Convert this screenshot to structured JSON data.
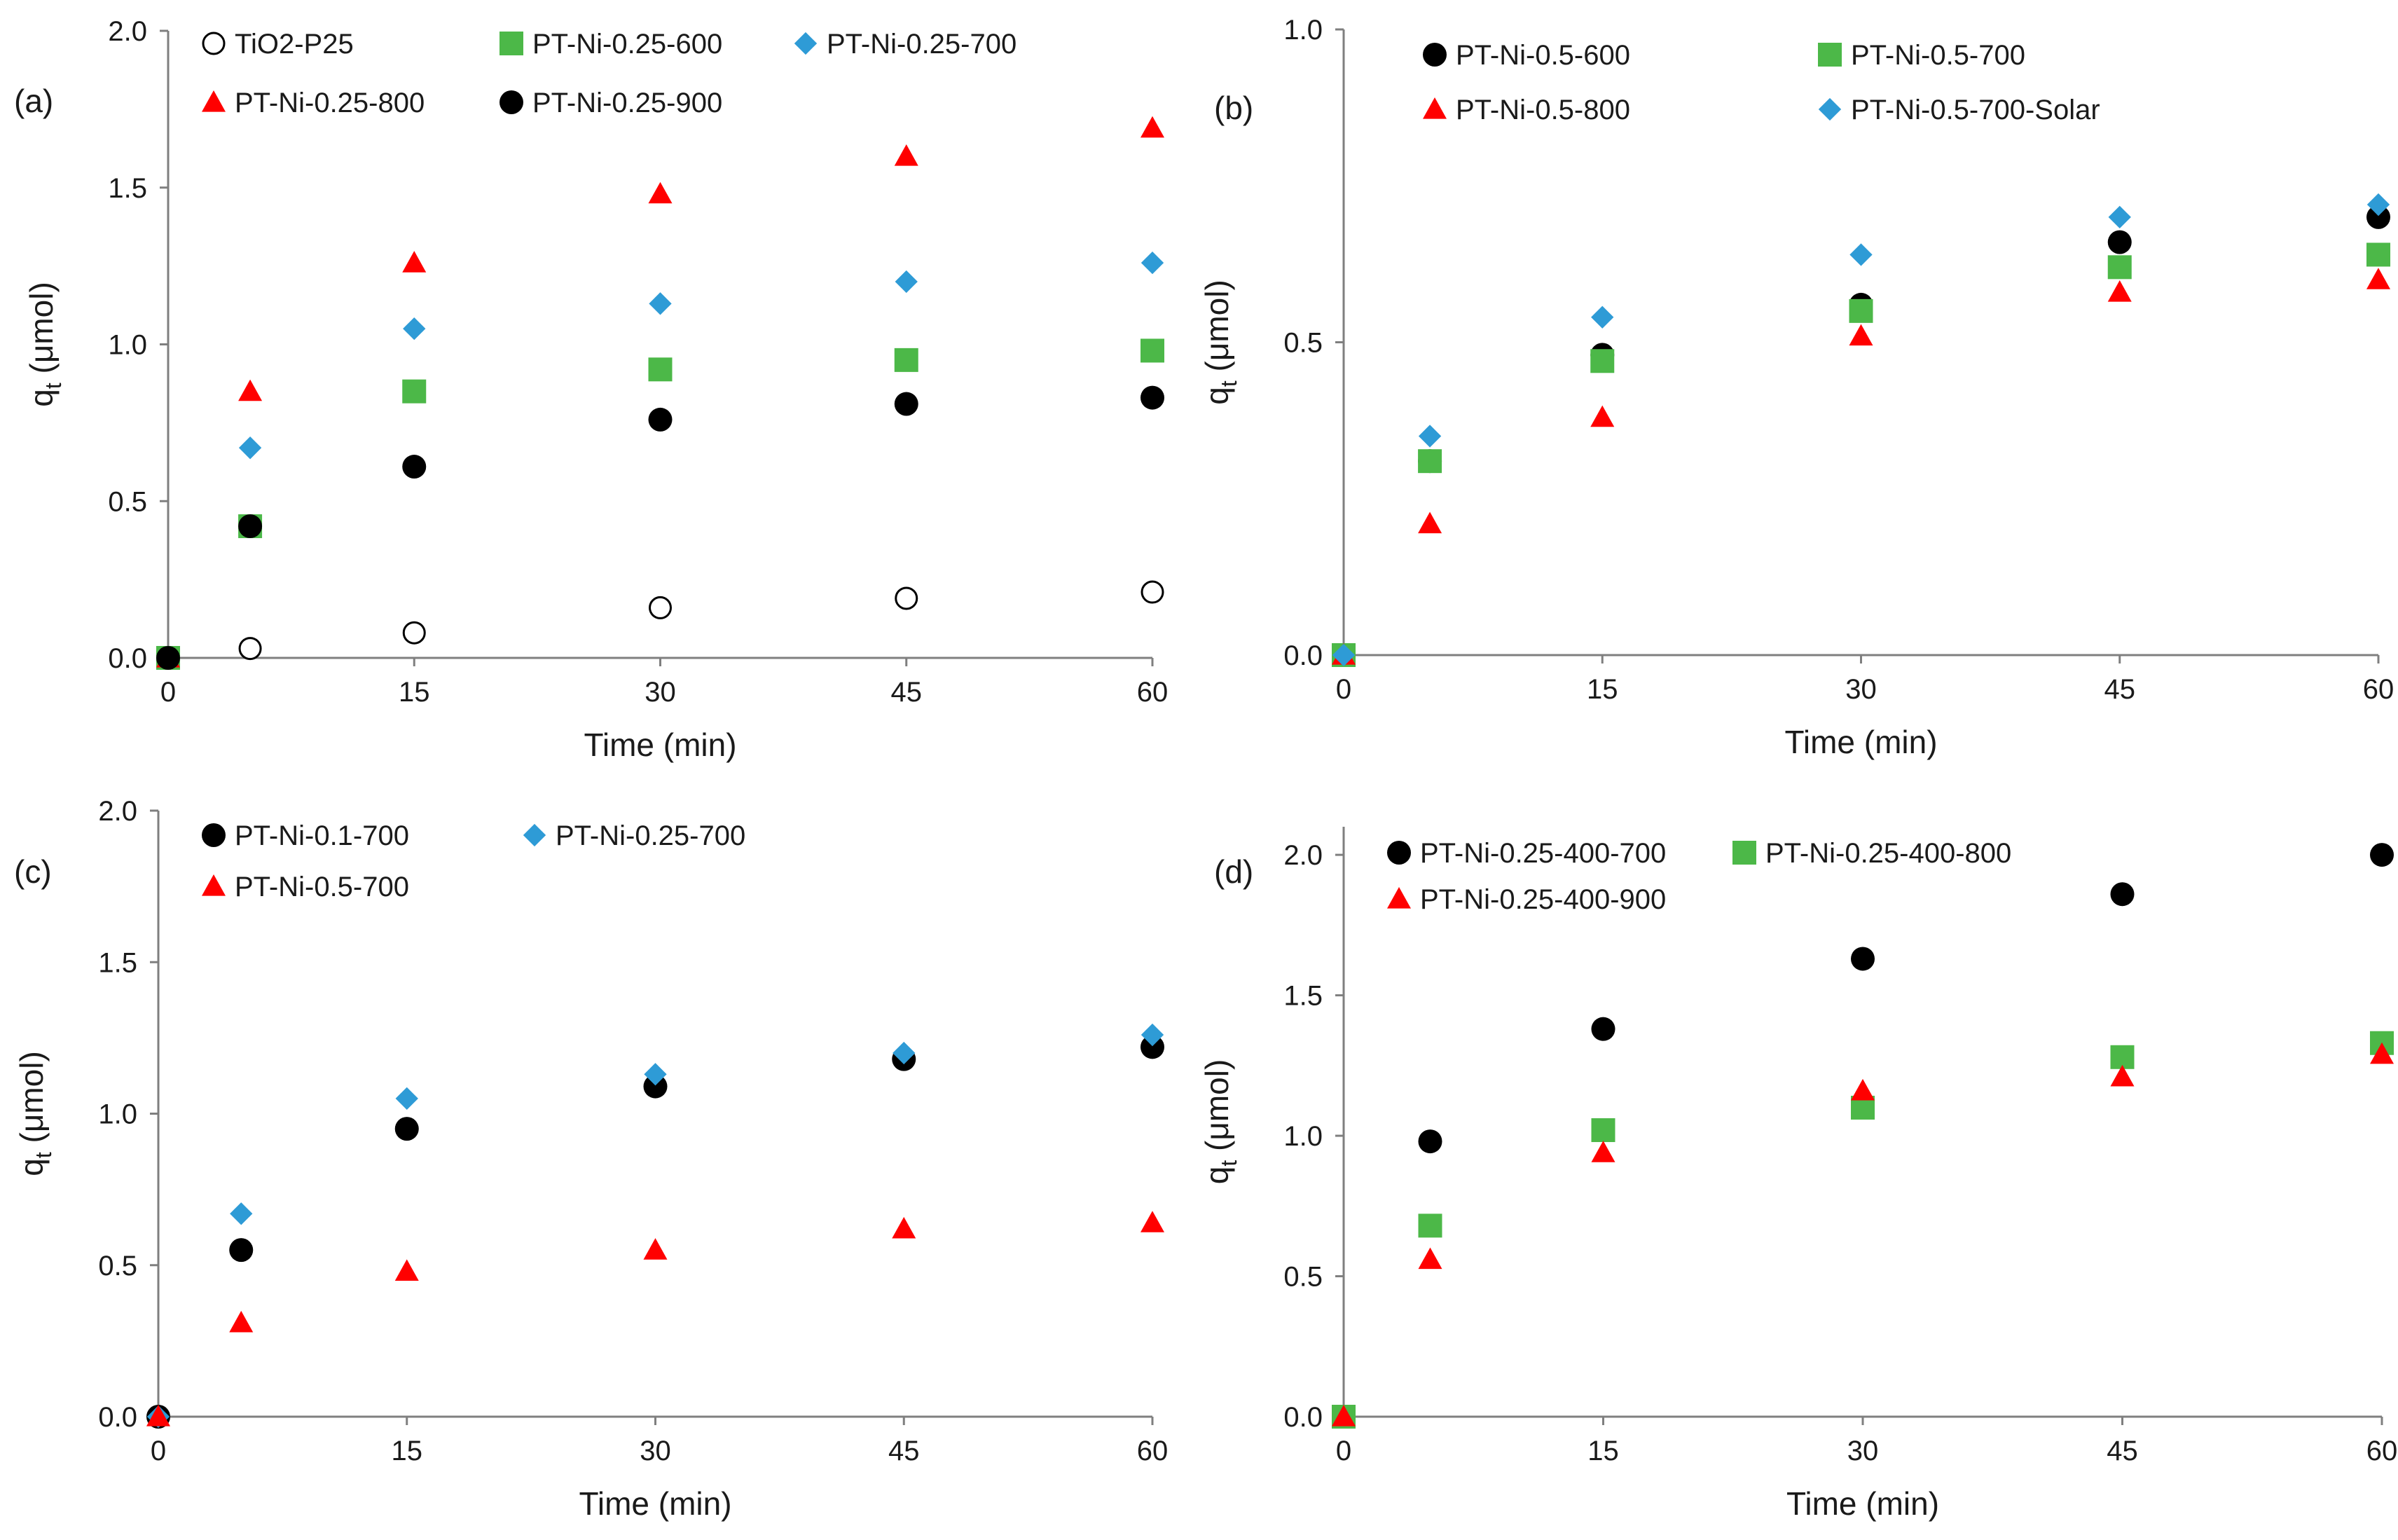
{
  "figure": {
    "colors": {
      "black": "#000000",
      "green": "#4CB848",
      "blue": "#2E9BD6",
      "red": "#FF0000",
      "axis": "#7F7F7F"
    },
    "panels": [
      "a",
      "b",
      "c",
      "d"
    ]
  },
  "chart_data": [
    {
      "id": "a",
      "type": "scatter",
      "panel_label": "(a)",
      "xlabel": "Time (min)",
      "ylabel_main": "q",
      "ylabel_sub": "t",
      "ylabel_unit": " (μmol)",
      "xlim": [
        0,
        60
      ],
      "ylim": [
        0,
        2.0
      ],
      "xticks": [
        "0",
        "15",
        "30",
        "45",
        "60"
      ],
      "xtick_values": [
        0,
        15,
        30,
        45,
        60
      ],
      "yticks": [
        "0.0",
        "0.5",
        "1.0",
        "1.5",
        "2.0"
      ],
      "ytick_values": [
        0,
        0.5,
        1.0,
        1.5,
        2.0
      ],
      "grid": false,
      "legend_position": "top",
      "series": [
        {
          "name": "TiO2-P25",
          "marker": "circle-open",
          "color": "#000000",
          "x": [
            0,
            5,
            15,
            30,
            45,
            60
          ],
          "y": [
            0,
            0.03,
            0.08,
            0.16,
            0.19,
            0.21
          ]
        },
        {
          "name": "PT-Ni-0.25-600",
          "marker": "square",
          "color": "#4CB848",
          "x": [
            0,
            5,
            15,
            30,
            45,
            60
          ],
          "y": [
            0,
            0.42,
            0.85,
            0.92,
            0.95,
            0.98
          ]
        },
        {
          "name": "PT-Ni-0.25-700",
          "marker": "diamond",
          "color": "#2E9BD6",
          "x": [
            0,
            5,
            15,
            30,
            45,
            60
          ],
          "y": [
            0,
            0.67,
            1.05,
            1.13,
            1.2,
            1.26
          ]
        },
        {
          "name": "PT-Ni-0.25-800",
          "marker": "triangle",
          "color": "#FF0000",
          "x": [
            0,
            5,
            15,
            30,
            45,
            60
          ],
          "y": [
            0,
            0.85,
            1.26,
            1.48,
            1.6,
            1.69
          ]
        },
        {
          "name": "PT-Ni-0.25-900",
          "marker": "circle",
          "color": "#000000",
          "x": [
            0,
            5,
            15,
            30,
            45,
            60
          ],
          "y": [
            0,
            0.42,
            0.61,
            0.76,
            0.81,
            0.83
          ]
        }
      ]
    },
    {
      "id": "b",
      "type": "scatter",
      "panel_label": "(b)",
      "xlabel": "Time (min)",
      "ylabel_main": "q",
      "ylabel_sub": "t",
      "ylabel_unit": " (μmol)",
      "xlim": [
        0,
        60
      ],
      "ylim": [
        0,
        1.0
      ],
      "xticks": [
        "0",
        "15",
        "30",
        "45",
        "60"
      ],
      "xtick_values": [
        0,
        15,
        30,
        45,
        60
      ],
      "yticks": [
        "0.0",
        "0.5",
        "1.0"
      ],
      "ytick_values": [
        0,
        0.5,
        1.0
      ],
      "grid": false,
      "legend_position": "top",
      "series": [
        {
          "name": "PT-Ni-0.5-600",
          "marker": "circle",
          "color": "#000000",
          "x": [
            0,
            5,
            15,
            30,
            45,
            60
          ],
          "y": [
            0,
            0.31,
            0.48,
            0.56,
            0.66,
            0.7
          ]
        },
        {
          "name": "PT-Ni-0.5-700",
          "marker": "square",
          "color": "#4CB848",
          "x": [
            0,
            5,
            15,
            30,
            45,
            60
          ],
          "y": [
            0,
            0.31,
            0.47,
            0.55,
            0.62,
            0.64
          ]
        },
        {
          "name": "PT-Ni-0.5-800",
          "marker": "triangle",
          "color": "#FF0000",
          "x": [
            0,
            5,
            15,
            30,
            45,
            60
          ],
          "y": [
            0,
            0.21,
            0.38,
            0.51,
            0.58,
            0.6
          ]
        },
        {
          "name": "PT-Ni-0.5-700-Solar",
          "marker": "diamond",
          "color": "#2E9BD6",
          "x": [
            0,
            5,
            15,
            30,
            45,
            60
          ],
          "y": [
            0,
            0.35,
            0.54,
            0.64,
            0.7,
            0.72
          ]
        }
      ]
    },
    {
      "id": "c",
      "type": "scatter",
      "panel_label": "(c)",
      "xlabel": "Time (min)",
      "ylabel_main": "q",
      "ylabel_sub": "t",
      "ylabel_unit": " (μmol)",
      "xlim": [
        0,
        60
      ],
      "ylim": [
        0,
        2.0
      ],
      "xticks": [
        "0",
        "15",
        "30",
        "45",
        "60"
      ],
      "xtick_values": [
        0,
        15,
        30,
        45,
        60
      ],
      "yticks": [
        "0.0",
        "0.5",
        "1.0",
        "1.5",
        "2.0"
      ],
      "ytick_values": [
        0,
        0.5,
        1.0,
        1.5,
        2.0
      ],
      "grid": false,
      "legend_position": "top",
      "series": [
        {
          "name": "PT-Ni-0.1-700",
          "marker": "circle",
          "color": "#000000",
          "x": [
            0,
            5,
            15,
            30,
            45,
            60
          ],
          "y": [
            0,
            0.55,
            0.95,
            1.09,
            1.18,
            1.22
          ]
        },
        {
          "name": "PT-Ni-0.25-700",
          "marker": "diamond",
          "color": "#2E9BD6",
          "x": [
            0,
            5,
            15,
            30,
            45,
            60
          ],
          "y": [
            0,
            0.67,
            1.05,
            1.13,
            1.2,
            1.26
          ]
        },
        {
          "name": "PT-Ni-0.5-700",
          "marker": "triangle",
          "color": "#FF0000",
          "x": [
            0,
            5,
            15,
            30,
            45,
            60
          ],
          "y": [
            0,
            0.31,
            0.48,
            0.55,
            0.62,
            0.64
          ]
        }
      ]
    },
    {
      "id": "d",
      "type": "scatter",
      "panel_label": "(d)",
      "xlabel": "Time (min)",
      "ylabel_main": "q",
      "ylabel_sub": "t",
      "ylabel_unit": " (μmol)",
      "xlim": [
        0,
        60
      ],
      "ylim": [
        0,
        2.1
      ],
      "xticks": [
        "0",
        "15",
        "30",
        "45",
        "60"
      ],
      "xtick_values": [
        0,
        15,
        30,
        45,
        60
      ],
      "yticks": [
        "0.0",
        "0.5",
        "1.0",
        "1.5",
        "2.0"
      ],
      "ytick_values": [
        0,
        0.5,
        1.0,
        1.5,
        2.0
      ],
      "grid": false,
      "legend_position": "top",
      "series": [
        {
          "name": "PT-Ni-0.25-400-700",
          "marker": "circle",
          "color": "#000000",
          "x": [
            0,
            5,
            15,
            30,
            45,
            60
          ],
          "y": [
            0,
            0.98,
            1.38,
            1.63,
            1.86,
            2.0
          ]
        },
        {
          "name": "PT-Ni-0.25-400-800",
          "marker": "square",
          "color": "#4CB848",
          "x": [
            0,
            5,
            15,
            30,
            45,
            60
          ],
          "y": [
            0,
            0.68,
            1.02,
            1.1,
            1.28,
            1.33
          ]
        },
        {
          "name": "PT-Ni-0.25-400-900",
          "marker": "triangle",
          "color": "#FF0000",
          "x": [
            0,
            5,
            15,
            30,
            45,
            60
          ],
          "y": [
            0,
            0.56,
            0.94,
            1.16,
            1.21,
            1.29
          ]
        }
      ]
    }
  ]
}
